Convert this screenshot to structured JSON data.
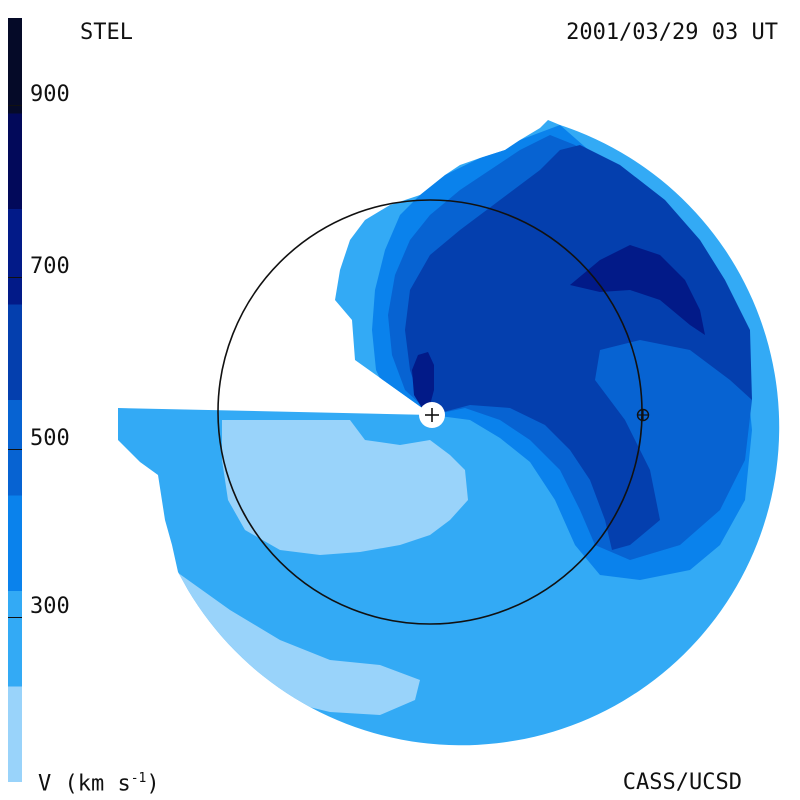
{
  "labels": {
    "instrument": "STEL",
    "timestamp": "2001/03/29 03 UT",
    "quantity": "V (km s",
    "quantity_exp": "-1",
    "quantity_close": ")",
    "credit": "CASS/UCSD"
  },
  "colorbar": {
    "range": [
      200,
      1000
    ],
    "ticks": [
      {
        "value": 900,
        "label": "900"
      },
      {
        "value": 700,
        "label": "700"
      },
      {
        "value": 500,
        "label": "500"
      },
      {
        "value": 300,
        "label": "300"
      }
    ],
    "levels": [
      {
        "from": 200,
        "to": 300,
        "color": "#99d3fa"
      },
      {
        "from": 300,
        "to": 400,
        "color": "#33aaf5"
      },
      {
        "from": 400,
        "to": 500,
        "color": "#0a82ec"
      },
      {
        "from": 500,
        "to": 600,
        "color": "#0763d2"
      },
      {
        "from": 600,
        "to": 700,
        "color": "#043fae"
      },
      {
        "from": 700,
        "to": 800,
        "color": "#021a88"
      },
      {
        "from": 800,
        "to": 900,
        "color": "#02095a"
      },
      {
        "from": 900,
        "to": 1000,
        "color": "#050a28"
      }
    ]
  },
  "markers": {
    "sun": "sun-plus-icon",
    "earth": "earth-circle-plus-icon"
  }
}
